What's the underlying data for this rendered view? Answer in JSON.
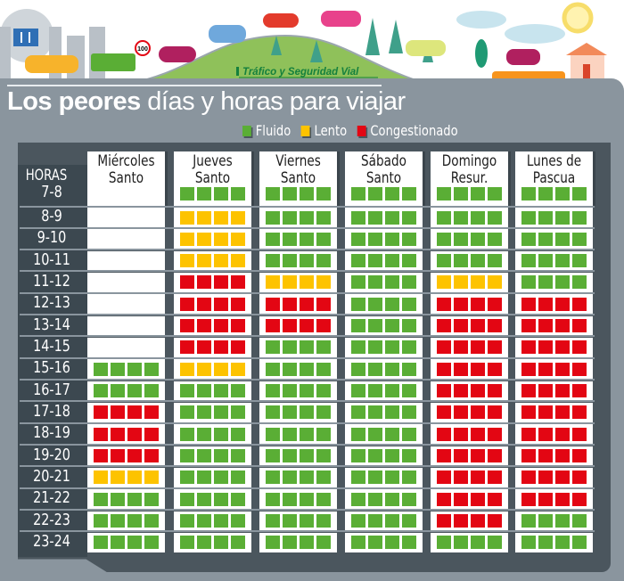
{
  "header": {
    "brand": "Tráfico y Seguridad Vial",
    "title_bold": "Los peores",
    "title_light": "días y horas para viajar",
    "speed_sign": "100"
  },
  "legend": [
    {
      "key": "G",
      "label": "Fluido",
      "color": "#5aae35"
    },
    {
      "key": "L",
      "label": "Lento",
      "color": "#fdc300"
    },
    {
      "key": "C",
      "label": "Congestionado",
      "color": "#e30613"
    }
  ],
  "chart_data": {
    "type": "heatmap",
    "title": "Los peores días y horas para viajar",
    "row_header": "HORAS",
    "rows": [
      "7-8",
      "8-9",
      "9-10",
      "10-11",
      "11-12",
      "12-13",
      "13-14",
      "14-15",
      "15-16",
      "16-17",
      "17-18",
      "18-19",
      "19-20",
      "20-21",
      "21-22",
      "22-23",
      "23-24"
    ],
    "columns": [
      {
        "line1": "Miércoles",
        "line2": "Santo",
        "values": [
          "",
          "",
          "",
          "",
          "",
          "",
          "",
          "",
          "G",
          "G",
          "C",
          "C",
          "C",
          "L",
          "G",
          "G",
          "G"
        ]
      },
      {
        "line1": "Jueves",
        "line2": "Santo",
        "values": [
          "G",
          "L",
          "L",
          "L",
          "C",
          "C",
          "C",
          "C",
          "L",
          "G",
          "G",
          "G",
          "G",
          "G",
          "G",
          "G",
          "G"
        ]
      },
      {
        "line1": "Viernes",
        "line2": "Santo",
        "values": [
          "G",
          "G",
          "G",
          "G",
          "L",
          "C",
          "C",
          "G",
          "G",
          "G",
          "G",
          "G",
          "G",
          "G",
          "G",
          "G",
          "G"
        ]
      },
      {
        "line1": "Sábado",
        "line2": "Santo",
        "values": [
          "G",
          "G",
          "G",
          "G",
          "G",
          "G",
          "G",
          "G",
          "G",
          "G",
          "G",
          "G",
          "G",
          "G",
          "G",
          "G",
          "G"
        ]
      },
      {
        "line1": "Domingo",
        "line2": "Resur.",
        "values": [
          "G",
          "G",
          "G",
          "G",
          "L",
          "C",
          "C",
          "C",
          "C",
          "C",
          "C",
          "C",
          "C",
          "C",
          "C",
          "C",
          "G"
        ]
      },
      {
        "line1": "Lunes de",
        "line2": "Pascua",
        "values": [
          "G",
          "G",
          "G",
          "G",
          "G",
          "C",
          "C",
          "C",
          "C",
          "C",
          "C",
          "C",
          "C",
          "C",
          "C",
          "G",
          "G"
        ]
      }
    ],
    "value_legend": {
      "G": "Fluido",
      "L": "Lento",
      "C": "Congestionado"
    }
  }
}
